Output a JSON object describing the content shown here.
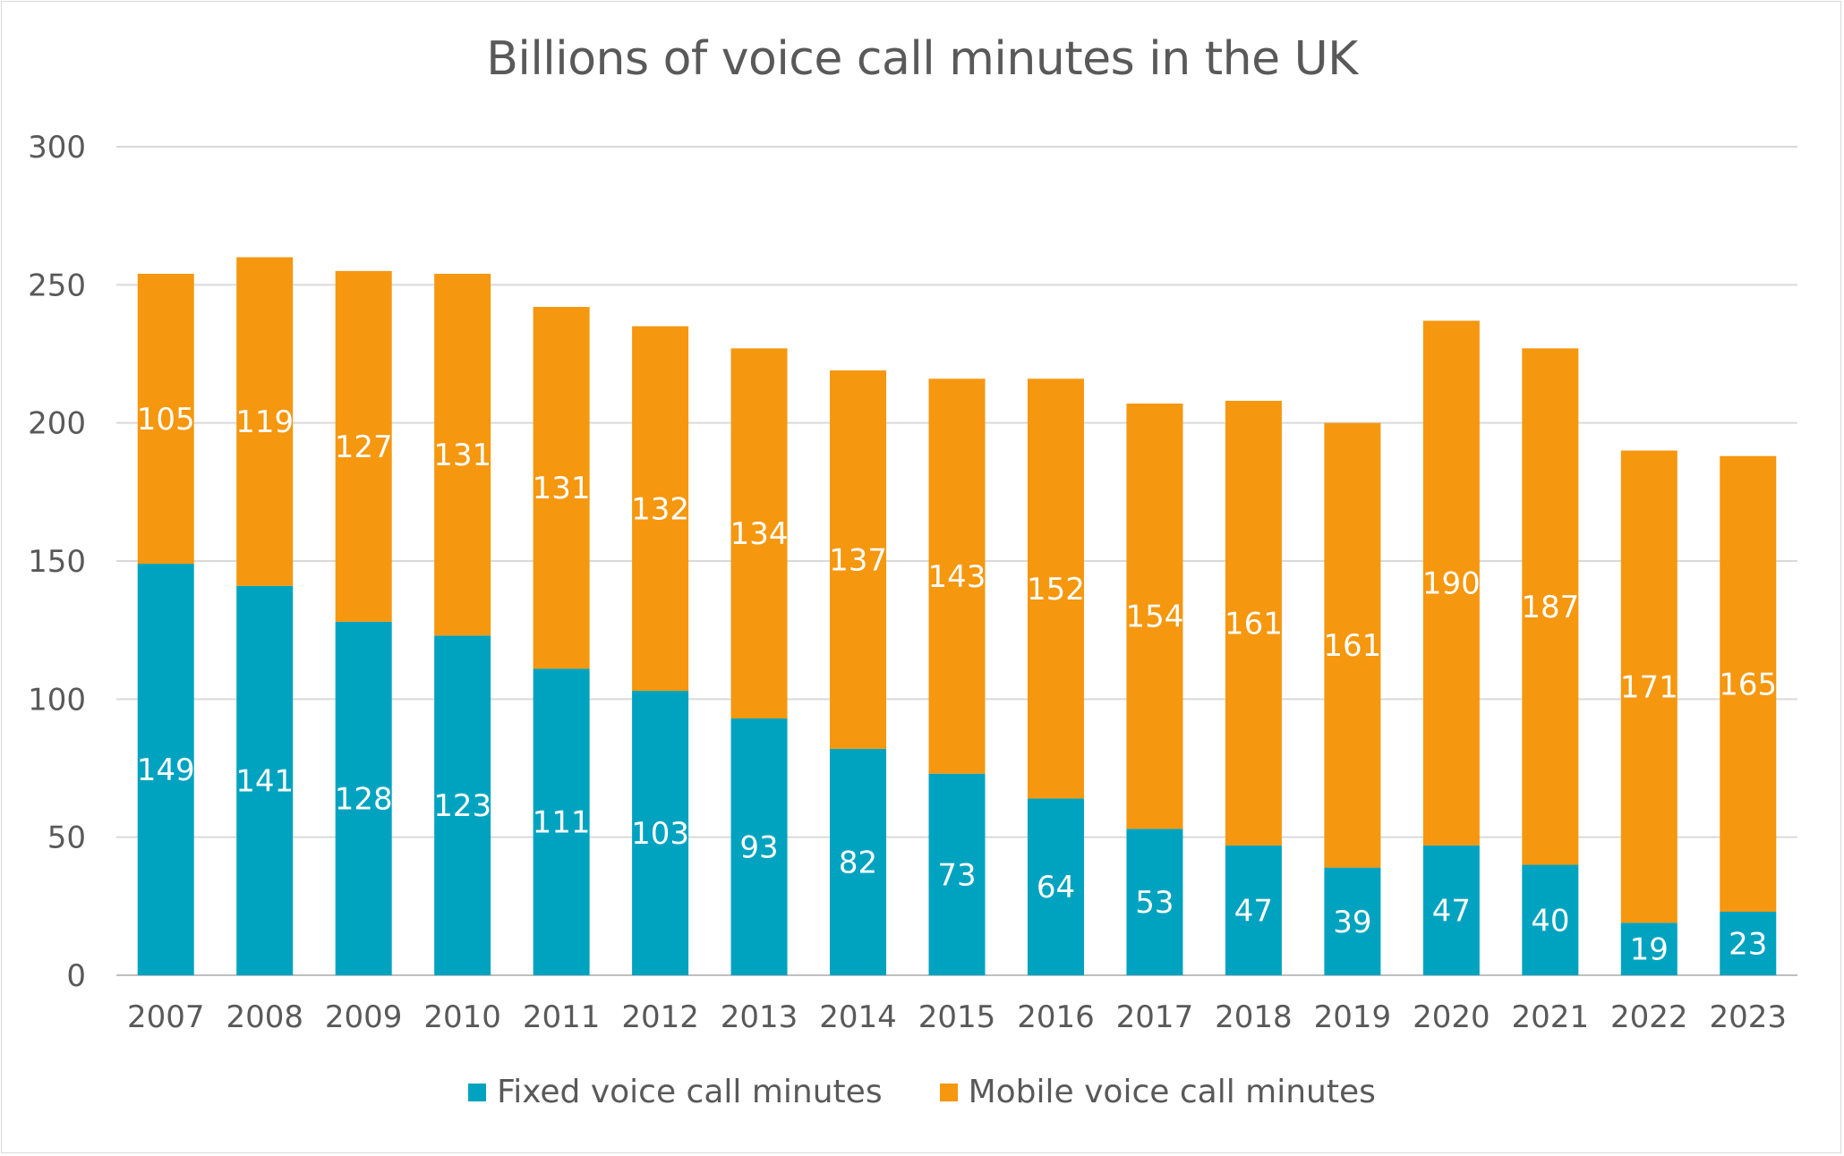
{
  "chart_data": {
    "type": "bar",
    "stacked": true,
    "title": "Billions of voice call minutes in the UK",
    "xlabel": "",
    "ylabel": "",
    "ylim": [
      0,
      300
    ],
    "yticks": [
      0,
      50,
      100,
      150,
      200,
      250,
      300
    ],
    "grid": true,
    "legend_position": "bottom",
    "categories": [
      "2007",
      "2008",
      "2009",
      "2010",
      "2011",
      "2012",
      "2013",
      "2014",
      "2015",
      "2016",
      "2017",
      "2018",
      "2019",
      "2020",
      "2021",
      "2022",
      "2023"
    ],
    "series": [
      {
        "name": "Fixed voice call minutes",
        "color": "#00a3bf",
        "values": [
          149,
          141,
          128,
          123,
          111,
          103,
          93,
          82,
          73,
          64,
          53,
          47,
          39,
          47,
          40,
          19,
          23
        ]
      },
      {
        "name": "Mobile voice call minutes",
        "color": "#f5970f",
        "values": [
          105,
          119,
          127,
          131,
          131,
          132,
          134,
          137,
          143,
          152,
          154,
          161,
          161,
          190,
          187,
          171,
          165
        ]
      }
    ]
  }
}
